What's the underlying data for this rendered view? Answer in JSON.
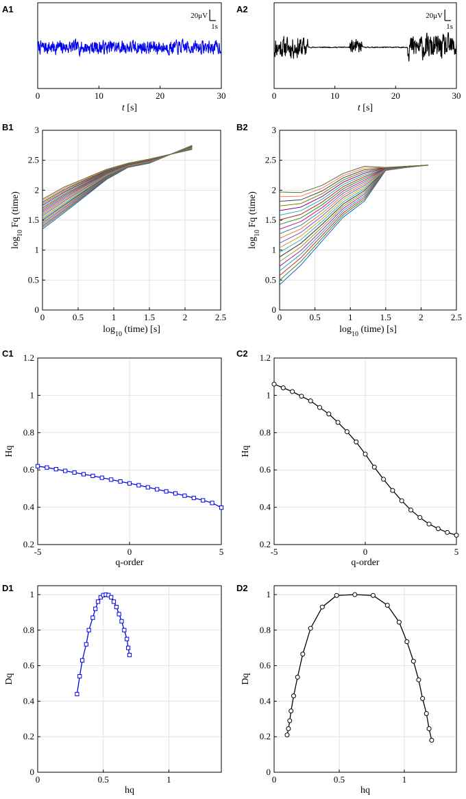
{
  "panel_labels": [
    "A1",
    "A2",
    "B1",
    "B2",
    "C1",
    "C2",
    "D1",
    "D2"
  ],
  "colors": {
    "blue": "#0000ee",
    "black": "#000000",
    "grid": "#e2e2e2",
    "axis": "#000000"
  },
  "chart_data": [
    {
      "id": "A1",
      "type": "line",
      "panel_label": "A1",
      "title": "",
      "xlabel_italic": "t",
      "xlabel_unit": "[s]",
      "ylabel": "",
      "xlim": [
        0,
        30
      ],
      "ylim": [
        -60,
        60
      ],
      "xticks": [
        0,
        10,
        20,
        30
      ],
      "xtick_labels": [
        "0",
        "10",
        "20",
        "30"
      ],
      "scale_bar": {
        "amplitude_label": "20μV",
        "time_label": "1s",
        "amplitude_uV": 20,
        "time_s": 1
      },
      "signal": {
        "baseline": 0,
        "noise_amplitude_uV": 9,
        "samples": 600,
        "seed": 7,
        "events": [],
        "color": "#0000ee"
      }
    },
    {
      "id": "A2",
      "type": "line",
      "panel_label": "A2",
      "title": "",
      "xlabel_italic": "t",
      "xlabel_unit": "[s]",
      "ylabel": "",
      "xlim": [
        0,
        30
      ],
      "ylim": [
        -60,
        60
      ],
      "xticks": [
        0,
        10,
        20,
        30
      ],
      "xtick_labels": [
        "0",
        "10",
        "20",
        "30"
      ],
      "scale_bar": {
        "amplitude_label": "20μV",
        "time_label": "1s",
        "amplitude_uV": 20,
        "time_s": 1
      },
      "signal": {
        "baseline": 0,
        "noise_amplitude_uV": 0.6,
        "samples": 600,
        "seed": 11,
        "events": [
          {
            "start": 0,
            "end": 5.5,
            "amp": 14
          },
          {
            "start": 12.5,
            "end": 14.5,
            "amp": 10
          },
          {
            "start": 22,
            "end": 30,
            "amp": 16
          }
        ],
        "color": "#000000"
      }
    },
    {
      "id": "B1",
      "type": "line",
      "panel_label": "B1",
      "xlabel": "log10 (time) [s]",
      "ylabel": "log10 Fq (time)",
      "xlim": [
        0,
        2.5
      ],
      "ylim": [
        0,
        3
      ],
      "xticks": [
        0,
        0.5,
        1,
        1.5,
        2,
        2.5
      ],
      "xtick_labels": [
        "0",
        "0.5",
        "1",
        "1.5",
        "2",
        "2.5"
      ],
      "yticks": [
        0,
        0.5,
        1,
        1.5,
        2,
        2.5,
        3
      ],
      "ytick_labels": [
        "0",
        "0.5",
        "1",
        "1.5",
        "2",
        "2.5",
        "3"
      ],
      "x": [
        0,
        0.3,
        0.6,
        0.9,
        1.2,
        1.5,
        1.8,
        2.1
      ],
      "series_top": [
        1.85,
        2.05,
        2.2,
        2.35,
        2.45,
        2.52,
        2.6,
        2.75
      ],
      "series_bottom": [
        1.35,
        1.62,
        1.9,
        2.18,
        2.38,
        2.45,
        2.6,
        2.68
      ],
      "series_count": 21
    },
    {
      "id": "B2",
      "type": "line",
      "panel_label": "B2",
      "xlabel": "log10 (time) [s]",
      "ylabel": "log10 Fq (time)",
      "xlim": [
        0,
        2.5
      ],
      "ylim": [
        0,
        3
      ],
      "xticks": [
        0,
        0.5,
        1,
        1.5,
        2,
        2.5
      ],
      "xtick_labels": [
        "0",
        "0.5",
        "1",
        "1.5",
        "2",
        "2.5"
      ],
      "yticks": [
        0,
        0.5,
        1,
        1.5,
        2,
        2.5,
        3
      ],
      "ytick_labels": [
        "0",
        "0.5",
        "1",
        "1.5",
        "2",
        "2.5",
        "3"
      ],
      "x": [
        0,
        0.3,
        0.6,
        0.9,
        1.2,
        1.5,
        1.8,
        2.1
      ],
      "series_top": [
        1.97,
        1.96,
        2.08,
        2.28,
        2.4,
        2.38,
        2.4,
        2.42
      ],
      "series_bottom": [
        0.42,
        0.75,
        1.15,
        1.55,
        1.82,
        2.33,
        2.38,
        2.42
      ],
      "series_count": 21
    },
    {
      "id": "C1",
      "type": "line",
      "panel_label": "C1",
      "xlabel": "q-order",
      "ylabel": "Hq",
      "xlim": [
        -5,
        5
      ],
      "ylim": [
        0.2,
        1.2
      ],
      "xticks": [
        -5,
        0,
        5
      ],
      "xtick_labels": [
        "-5",
        "0",
        "5"
      ],
      "yticks": [
        0.2,
        0.4,
        0.6,
        0.8,
        1,
        1.2
      ],
      "ytick_labels": [
        "0.2",
        "0.4",
        "0.6",
        "0.8",
        "1",
        "1.2"
      ],
      "marker": "square",
      "color": "#0000ee",
      "x": [
        -5,
        -4.5,
        -4,
        -3.5,
        -3,
        -2.5,
        -2,
        -1.5,
        -1,
        -0.5,
        0,
        0.5,
        1,
        1.5,
        2,
        2.5,
        3,
        3.5,
        4,
        4.5,
        5
      ],
      "y": [
        0.62,
        0.613,
        0.604,
        0.595,
        0.586,
        0.577,
        0.568,
        0.558,
        0.548,
        0.538,
        0.528,
        0.518,
        0.507,
        0.496,
        0.485,
        0.474,
        0.462,
        0.45,
        0.437,
        0.423,
        0.398
      ]
    },
    {
      "id": "C2",
      "type": "line",
      "panel_label": "C2",
      "xlabel": "q-order",
      "ylabel": "Hq",
      "xlim": [
        -5,
        5
      ],
      "ylim": [
        0.2,
        1.2
      ],
      "xticks": [
        -5,
        0,
        5
      ],
      "xtick_labels": [
        "-5",
        "0",
        "5"
      ],
      "yticks": [
        0.2,
        0.4,
        0.6,
        0.8,
        1,
        1.2
      ],
      "ytick_labels": [
        "0.2",
        "0.4",
        "0.6",
        "0.8",
        "1",
        "1.2"
      ],
      "marker": "circle",
      "color": "#000000",
      "x": [
        -5,
        -4.5,
        -4,
        -3.5,
        -3,
        -2.5,
        -2,
        -1.5,
        -1,
        -0.5,
        0,
        0.5,
        1,
        1.5,
        2,
        2.5,
        3,
        3.5,
        4,
        4.5,
        5
      ],
      "y": [
        1.06,
        1.04,
        1.02,
        0.995,
        0.97,
        0.935,
        0.9,
        0.855,
        0.805,
        0.75,
        0.685,
        0.615,
        0.55,
        0.49,
        0.435,
        0.385,
        0.345,
        0.31,
        0.285,
        0.265,
        0.25
      ]
    },
    {
      "id": "D1",
      "type": "line",
      "panel_label": "D1",
      "xlabel": "hq",
      "ylabel": "Dq",
      "xlim": [
        0,
        1.4
      ],
      "ylim": [
        0,
        1.05
      ],
      "xticks": [
        0,
        0.5,
        1
      ],
      "xtick_labels": [
        "0",
        "0.5",
        "1"
      ],
      "yticks": [
        0,
        0.2,
        0.4,
        0.6,
        0.8,
        1
      ],
      "ytick_labels": [
        "0",
        "0.2",
        "0.4",
        "0.6",
        "0.8",
        "1"
      ],
      "marker": "square",
      "color": "#0000ee",
      "x": [
        0.3,
        0.32,
        0.34,
        0.37,
        0.39,
        0.42,
        0.44,
        0.46,
        0.48,
        0.5,
        0.52,
        0.54,
        0.56,
        0.58,
        0.6,
        0.62,
        0.64,
        0.66,
        0.68,
        0.69,
        0.7
      ],
      "y": [
        0.44,
        0.54,
        0.63,
        0.72,
        0.8,
        0.87,
        0.92,
        0.96,
        0.985,
        0.997,
        1.0,
        0.997,
        0.985,
        0.96,
        0.93,
        0.89,
        0.85,
        0.8,
        0.75,
        0.7,
        0.66
      ]
    },
    {
      "id": "D2",
      "type": "line",
      "panel_label": "D2",
      "xlabel": "hq",
      "ylabel": "Dq",
      "xlim": [
        0,
        1.4
      ],
      "ylim": [
        0,
        1.05
      ],
      "xticks": [
        0,
        0.5,
        1
      ],
      "xtick_labels": [
        "0",
        "0.5",
        "1"
      ],
      "yticks": [
        0,
        0.2,
        0.4,
        0.6,
        0.8,
        1
      ],
      "ytick_labels": [
        "0",
        "0.2",
        "0.4",
        "0.6",
        "0.8",
        "1"
      ],
      "marker": "circle",
      "color": "#000000",
      "x": [
        0.1,
        0.11,
        0.12,
        0.13,
        0.15,
        0.18,
        0.22,
        0.28,
        0.37,
        0.48,
        0.62,
        0.76,
        0.87,
        0.96,
        1.02,
        1.07,
        1.11,
        1.14,
        1.17,
        1.19,
        1.21
      ],
      "y": [
        0.21,
        0.245,
        0.29,
        0.345,
        0.43,
        0.535,
        0.665,
        0.81,
        0.93,
        0.995,
        1.0,
        0.995,
        0.94,
        0.845,
        0.735,
        0.625,
        0.52,
        0.415,
        0.33,
        0.245,
        0.18
      ]
    }
  ]
}
